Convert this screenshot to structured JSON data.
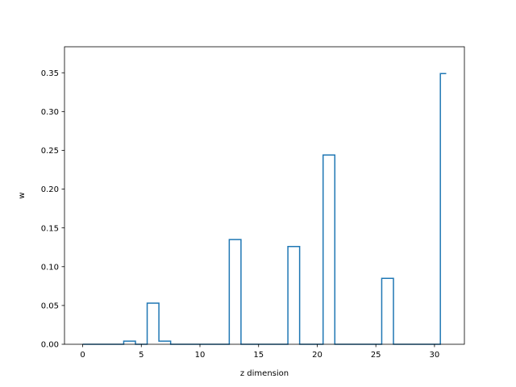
{
  "chart_data": {
    "type": "line",
    "drawstyle": "steps-mid",
    "xlabel": "z dimension",
    "ylabel": "w",
    "xlim": [
      -1.55,
      32.55
    ],
    "ylim": [
      0,
      0.3835
    ],
    "xticks": [
      0,
      5,
      10,
      15,
      20,
      25,
      30
    ],
    "xtick_labels": [
      "0",
      "5",
      "10",
      "15",
      "20",
      "25",
      "30"
    ],
    "yticks": [
      0,
      0.05,
      0.1,
      0.15,
      0.2,
      0.25,
      0.3,
      0.35
    ],
    "ytick_labels": [
      "0.00",
      "0.05",
      "0.10",
      "0.15",
      "0.20",
      "0.25",
      "0.30",
      "0.35"
    ],
    "grid": false,
    "series": [
      {
        "color": "#1f77b4",
        "x": [
          0,
          1,
          2,
          3,
          4,
          5,
          6,
          7,
          8,
          9,
          10,
          11,
          12,
          13,
          14,
          15,
          16,
          17,
          18,
          19,
          20,
          21,
          22,
          23,
          24,
          25,
          26,
          27,
          28,
          29,
          30,
          31
        ],
        "y": [
          0,
          0,
          0,
          0,
          0.004,
          0,
          0.053,
          0.004,
          0,
          0,
          0,
          0,
          0,
          0.135,
          0,
          0,
          0,
          0,
          0.126,
          0,
          0,
          0.244,
          0,
          0,
          0,
          0,
          0.085,
          0,
          0,
          0,
          0,
          0.349
        ]
      }
    ]
  }
}
